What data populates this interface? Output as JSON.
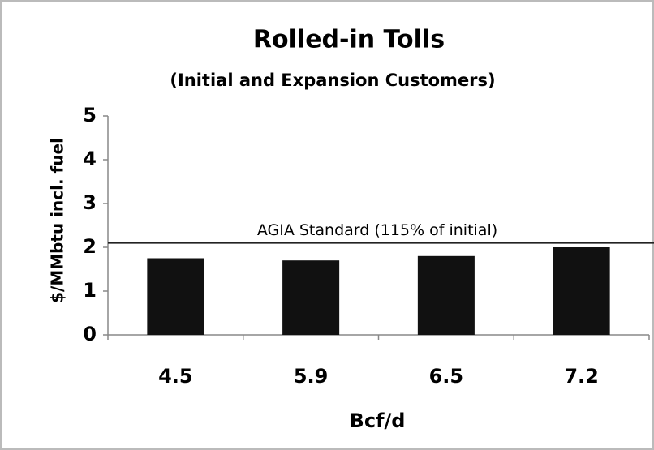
{
  "chart_data": {
    "type": "bar",
    "title": "Rolled-in Tolls",
    "subtitle": "(Initial and Expansion Customers)",
    "x_label": "Bcf/d",
    "y_label": "$/MMbtu incl. fuel",
    "categories": [
      "4.5",
      "5.9",
      "6.5",
      "7.2"
    ],
    "values": [
      1.75,
      1.7,
      1.8,
      2.0
    ],
    "color": "#111111",
    "ylim": [
      0,
      5
    ],
    "yticks": [
      0,
      1,
      2,
      3,
      4,
      5
    ],
    "grid": false,
    "reference_line": {
      "value": 2.1,
      "label": "AGIA Standard (115% of initial)"
    }
  }
}
